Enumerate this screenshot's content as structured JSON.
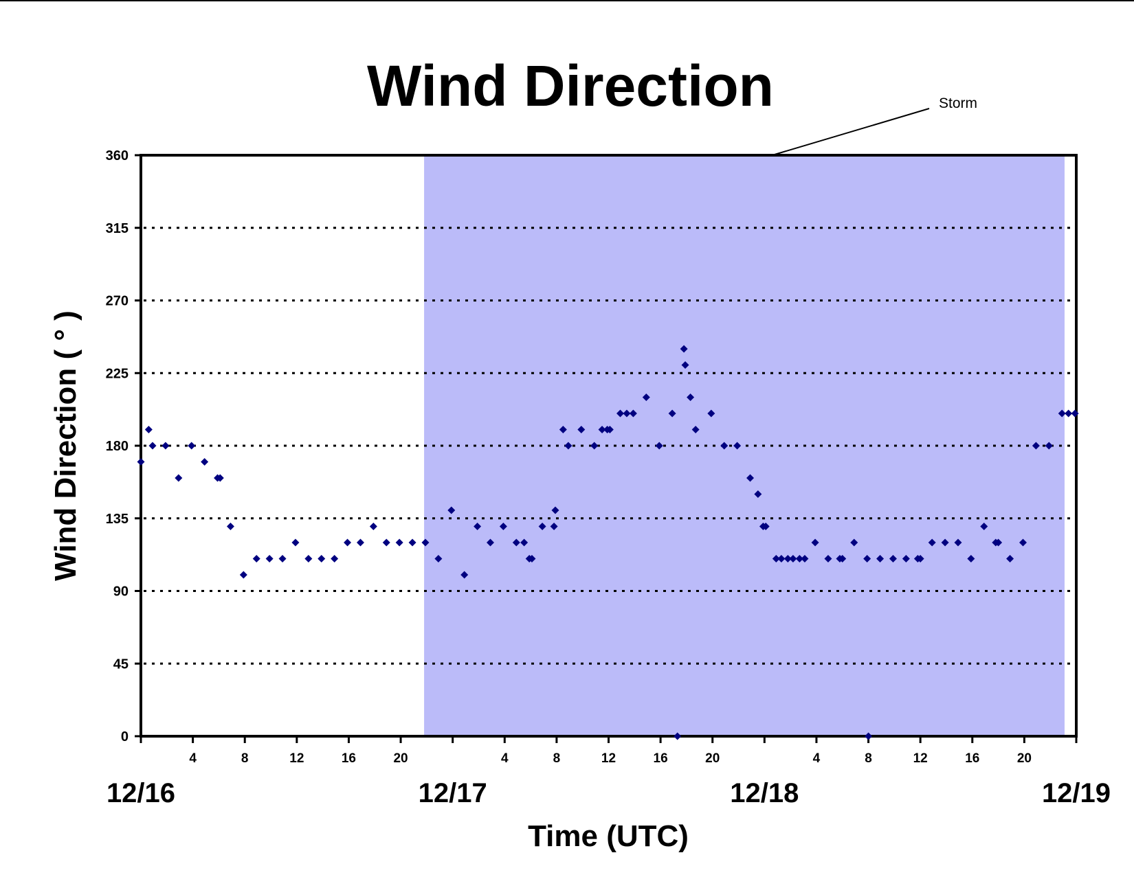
{
  "chart_data": {
    "type": "scatter",
    "title": "Wind Direction",
    "xlabel": "Time (UTC)",
    "ylabel": "Wind Direction ( ° )",
    "ylim": [
      0,
      360
    ],
    "yticks": [
      0,
      45,
      90,
      135,
      180,
      225,
      270,
      315,
      360
    ],
    "xlim": [
      0,
      72
    ],
    "hour_ticks": [
      {
        "x": 4,
        "label": "4"
      },
      {
        "x": 8,
        "label": "8"
      },
      {
        "x": 12,
        "label": "12"
      },
      {
        "x": 16,
        "label": "16"
      },
      {
        "x": 20,
        "label": "20"
      },
      {
        "x": 28,
        "label": "4"
      },
      {
        "x": 32,
        "label": "8"
      },
      {
        "x": 36,
        "label": "12"
      },
      {
        "x": 40,
        "label": "16"
      },
      {
        "x": 44,
        "label": "20"
      },
      {
        "x": 52,
        "label": "4"
      },
      {
        "x": 56,
        "label": "8"
      },
      {
        "x": 60,
        "label": "12"
      },
      {
        "x": 64,
        "label": "16"
      },
      {
        "x": 68,
        "label": "20"
      }
    ],
    "day_ticks": [
      {
        "x": 0,
        "label": "12/16"
      },
      {
        "x": 24,
        "label": "12/17"
      },
      {
        "x": 48,
        "label": "12/18"
      },
      {
        "x": 72,
        "label": "12/19"
      }
    ],
    "grid": "horizontal dotted",
    "shaded_region": {
      "label": "Storm",
      "x_start": 21.8,
      "x_end": 71.1,
      "color": "#bbbbf9"
    },
    "marker_color": "#000080",
    "points": [
      [
        0,
        170
      ],
      [
        0.6,
        190
      ],
      [
        0.9,
        180
      ],
      [
        1.9,
        180
      ],
      [
        2.9,
        160
      ],
      [
        3.9,
        180
      ],
      [
        4.9,
        170
      ],
      [
        5.9,
        160
      ],
      [
        6.1,
        160
      ],
      [
        6.9,
        130
      ],
      [
        7.9,
        100
      ],
      [
        8.9,
        110
      ],
      [
        9.9,
        110
      ],
      [
        10.9,
        110
      ],
      [
        11.9,
        120
      ],
      [
        12.9,
        110
      ],
      [
        13.9,
        110
      ],
      [
        14.9,
        110
      ],
      [
        15.9,
        120
      ],
      [
        16.9,
        120
      ],
      [
        17.9,
        130
      ],
      [
        18.9,
        120
      ],
      [
        19.9,
        120
      ],
      [
        20.9,
        120
      ],
      [
        21.9,
        120
      ],
      [
        22.9,
        110
      ],
      [
        23.9,
        140
      ],
      [
        24.9,
        100
      ],
      [
        25.9,
        130
      ],
      [
        26.9,
        120
      ],
      [
        27.9,
        130
      ],
      [
        28.9,
        120
      ],
      [
        29.5,
        120
      ],
      [
        29.9,
        110
      ],
      [
        30.1,
        110
      ],
      [
        30.9,
        130
      ],
      [
        31.8,
        130
      ],
      [
        31.9,
        140
      ],
      [
        32.5,
        190
      ],
      [
        32.9,
        180
      ],
      [
        33.9,
        190
      ],
      [
        34.9,
        180
      ],
      [
        35.5,
        190
      ],
      [
        35.9,
        190
      ],
      [
        36.1,
        190
      ],
      [
        36.9,
        200
      ],
      [
        37.4,
        200
      ],
      [
        37.9,
        200
      ],
      [
        38.9,
        210
      ],
      [
        39.9,
        180
      ],
      [
        40.9,
        200
      ],
      [
        41.3,
        0
      ],
      [
        41.8,
        240
      ],
      [
        41.9,
        230
      ],
      [
        42.3,
        210
      ],
      [
        42.7,
        190
      ],
      [
        43.9,
        200
      ],
      [
        44.9,
        180
      ],
      [
        45.9,
        180
      ],
      [
        46.9,
        160
      ],
      [
        47.5,
        150
      ],
      [
        47.9,
        130
      ],
      [
        48.1,
        130
      ],
      [
        48.9,
        110
      ],
      [
        49.3,
        110
      ],
      [
        49.8,
        110
      ],
      [
        50.2,
        110
      ],
      [
        50.7,
        110
      ],
      [
        51.1,
        110
      ],
      [
        51.9,
        120
      ],
      [
        52.9,
        110
      ],
      [
        53.8,
        110
      ],
      [
        54.0,
        110
      ],
      [
        54.9,
        120
      ],
      [
        55.9,
        110
      ],
      [
        56.0,
        0
      ],
      [
        56.9,
        110
      ],
      [
        57.9,
        110
      ],
      [
        58.9,
        110
      ],
      [
        59.8,
        110
      ],
      [
        60.0,
        110
      ],
      [
        60.9,
        120
      ],
      [
        61.9,
        120
      ],
      [
        62.9,
        120
      ],
      [
        63.9,
        110
      ],
      [
        64.9,
        130
      ],
      [
        65.8,
        120
      ],
      [
        66.0,
        120
      ],
      [
        66.9,
        110
      ],
      [
        67.9,
        120
      ],
      [
        68.9,
        180
      ],
      [
        69.9,
        180
      ],
      [
        70.9,
        200
      ],
      [
        71.4,
        200
      ],
      [
        71.9,
        200
      ]
    ]
  }
}
